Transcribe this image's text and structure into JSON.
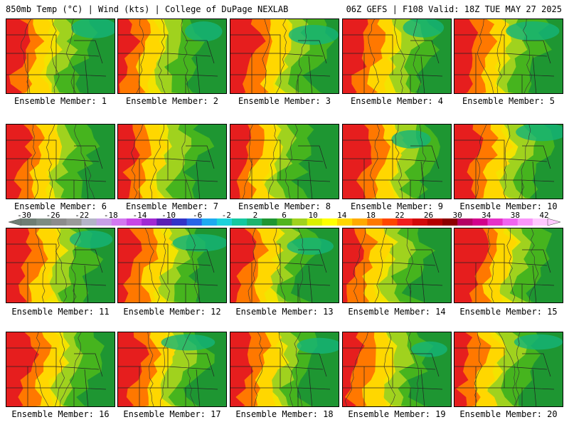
{
  "header": {
    "left": "850mb Temp (°C) | Wind (kts) | College of DuPage NEXLAB",
    "right": "06Z GEFS | F108 Valid: 18Z TUE MAY 27 2025"
  },
  "members": [
    {
      "label": "Ensemble Member: 1"
    },
    {
      "label": "Ensemble Member: 2"
    },
    {
      "label": "Ensemble Member: 3"
    },
    {
      "label": "Ensemble Member: 4"
    },
    {
      "label": "Ensemble Member: 5"
    },
    {
      "label": "Ensemble Member: 6"
    },
    {
      "label": "Ensemble Member: 7"
    },
    {
      "label": "Ensemble Member: 8"
    },
    {
      "label": "Ensemble Member: 9"
    },
    {
      "label": "Ensemble Member: 10"
    },
    {
      "label": "Ensemble Member: 11"
    },
    {
      "label": "Ensemble Member: 12"
    },
    {
      "label": "Ensemble Member: 13"
    },
    {
      "label": "Ensemble Member: 14"
    },
    {
      "label": "Ensemble Member: 15"
    },
    {
      "label": "Ensemble Member: 16"
    },
    {
      "label": "Ensemble Member: 17"
    },
    {
      "label": "Ensemble Member: 18"
    },
    {
      "label": "Ensemble Member: 19"
    },
    {
      "label": "Ensemble Member: 20"
    }
  ],
  "colorbar": {
    "tick_labels": [
      "-30",
      "-26",
      "-22",
      "-18",
      "-14",
      "-10",
      "-6",
      "-2",
      "2",
      "6",
      "10",
      "14",
      "18",
      "22",
      "26",
      "30",
      "34",
      "38",
      "42"
    ],
    "colors": [
      "#6e7e74",
      "#7d8c82",
      "#8c8c8c",
      "#9a9a9a",
      "#b4b4c8",
      "#c8a0e6",
      "#d278f0",
      "#c846e6",
      "#a028d2",
      "#5a1eb4",
      "#3232c8",
      "#2864e6",
      "#1eaaf0",
      "#1ed2dc",
      "#14c8a0",
      "#1eb46e",
      "#1e9632",
      "#50b41e",
      "#a0d21e",
      "#dcf000",
      "#ffff00",
      "#ffd700",
      "#ffaa00",
      "#ff7800",
      "#ff4600",
      "#f01e1e",
      "#d20a0a",
      "#b40000",
      "#8c0000",
      "#b40064",
      "#d2008c",
      "#e632c8",
      "#f064f0",
      "#fa96fa",
      "#ffc8ff"
    ]
  },
  "map_colors": {
    "hot": "#e61e1e",
    "warm": "#ff7800",
    "mild": "#ffd700",
    "cool": "#f3e300",
    "green_light": "#a0d21e",
    "green": "#46b41e",
    "green_dark": "#1e9632",
    "teal": "#14b478"
  }
}
